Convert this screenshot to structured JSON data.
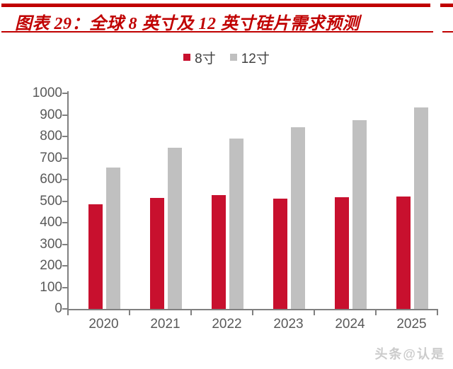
{
  "title": "图表 29：全球 8 英寸及 12 英寸硅片需求预测",
  "watermark": "头条@认是",
  "colors": {
    "accent_red": "#C00000",
    "bar_red": "#C8102E",
    "bar_gray": "#C0C0C0",
    "axis_line": "#808080",
    "axis_text": "#595959",
    "legend_text": "#404040",
    "watermark_gray": "#CBCBCB"
  },
  "chart_data": {
    "type": "bar",
    "title": "图表 29：全球 8 英寸及 12 英寸硅片需求预测",
    "categories": [
      "2020",
      "2021",
      "2022",
      "2023",
      "2024",
      "2025"
    ],
    "series": [
      {
        "name": "8寸",
        "color": "#C8102E",
        "values": [
          485,
          516,
          528,
          513,
          518,
          522
        ]
      },
      {
        "name": "12寸",
        "color": "#C0C0C0",
        "values": [
          656,
          746,
          789,
          842,
          876,
          936
        ]
      }
    ],
    "xlabel": "",
    "ylabel": "",
    "ylim": [
      0,
      1000
    ],
    "ytick_step": 100,
    "grid": false,
    "legend_position": "top-center"
  }
}
